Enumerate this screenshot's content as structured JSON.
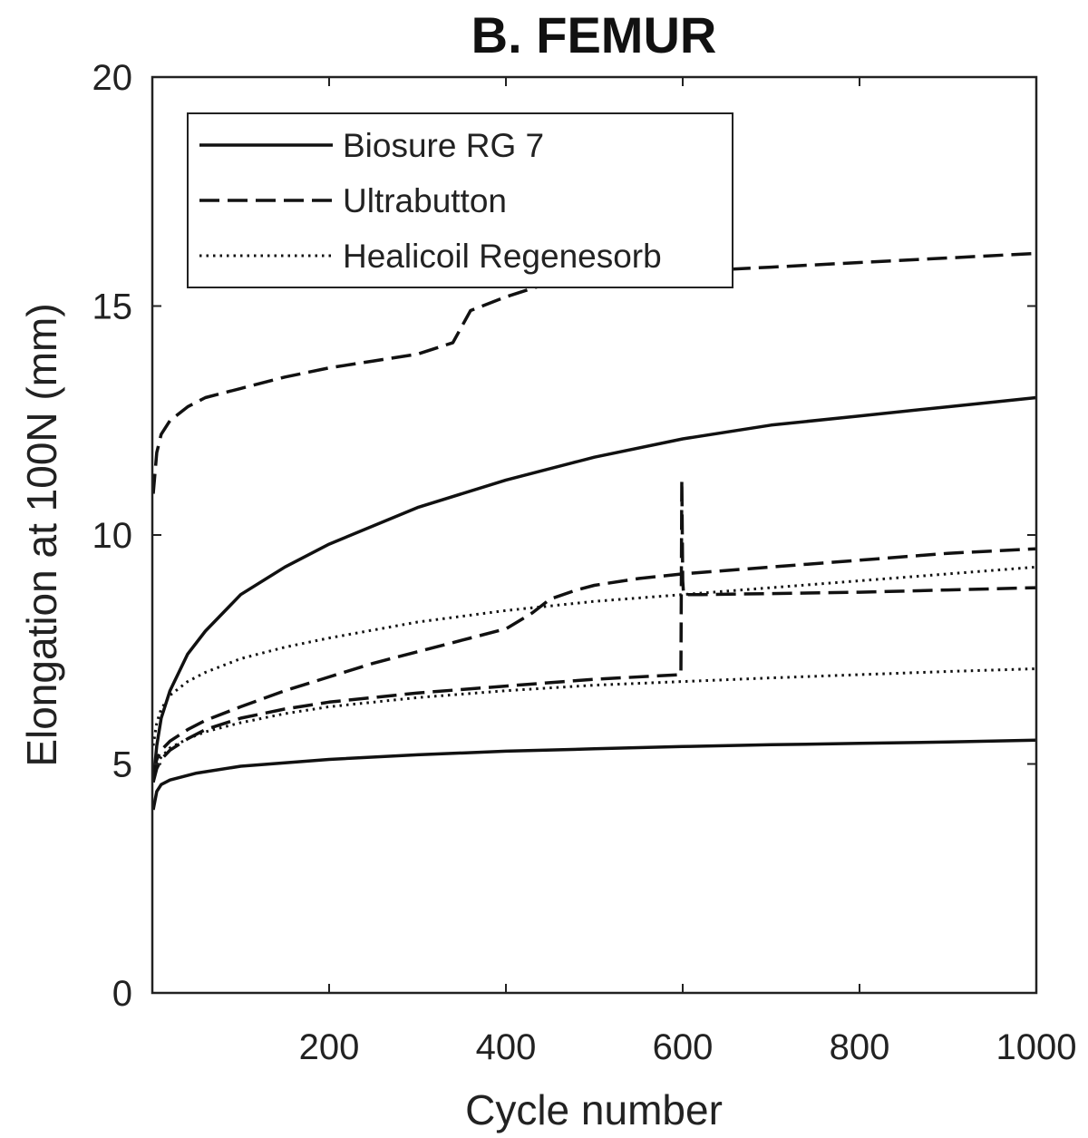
{
  "chart_data": {
    "type": "line",
    "title": "B. FEMUR",
    "xlabel": "Cycle number",
    "ylabel": "Elongation at 100N (mm)",
    "xlim": [
      0,
      1000
    ],
    "ylim": [
      0,
      20
    ],
    "x_ticks": [
      200,
      400,
      600,
      800,
      1000
    ],
    "y_ticks": [
      0,
      5,
      10,
      15,
      20
    ],
    "grid": false,
    "legend_position": "top-left",
    "legend": [
      {
        "label": "Biosure RG 7",
        "style": "solid"
      },
      {
        "label": "Ultrabutton",
        "style": "dashed"
      },
      {
        "label": "Healicoil Regenesorb",
        "style": "dotted"
      }
    ],
    "series": [
      {
        "legend_index": 0,
        "style": "solid",
        "x": [
          1,
          5,
          10,
          20,
          40,
          60,
          100,
          150,
          200,
          300,
          400,
          500,
          600,
          700,
          800,
          900,
          1000
        ],
        "y": [
          4.6,
          5.4,
          6.0,
          6.6,
          7.4,
          7.9,
          8.7,
          9.3,
          9.8,
          10.6,
          11.2,
          11.7,
          12.1,
          12.4,
          12.6,
          12.8,
          13.0
        ]
      },
      {
        "legend_index": 0,
        "style": "solid",
        "x": [
          1,
          5,
          10,
          20,
          50,
          100,
          200,
          300,
          400,
          500,
          600,
          700,
          800,
          900,
          1000
        ],
        "y": [
          4.0,
          4.4,
          4.55,
          4.65,
          4.8,
          4.95,
          5.1,
          5.2,
          5.28,
          5.33,
          5.38,
          5.42,
          5.45,
          5.48,
          5.52
        ]
      },
      {
        "legend_index": 1,
        "style": "dashed",
        "x": [
          1,
          5,
          10,
          20,
          40,
          60,
          100,
          150,
          200,
          250,
          300,
          340,
          360,
          400,
          440,
          480,
          500,
          600,
          700,
          800,
          900,
          1000
        ],
        "y": [
          10.9,
          11.8,
          12.2,
          12.5,
          12.8,
          13.0,
          13.2,
          13.45,
          13.65,
          13.8,
          13.95,
          14.2,
          14.9,
          15.2,
          15.45,
          15.55,
          15.6,
          15.75,
          15.85,
          15.95,
          16.05,
          16.15
        ]
      },
      {
        "legend_index": 1,
        "style": "dashed",
        "x": [
          1,
          5,
          10,
          20,
          40,
          60,
          100,
          150,
          200,
          250,
          300,
          350,
          400,
          430,
          450,
          480,
          500,
          550,
          600,
          700,
          800,
          900,
          1000
        ],
        "y": [
          4.8,
          5.1,
          5.3,
          5.5,
          5.75,
          5.95,
          6.25,
          6.6,
          6.9,
          7.2,
          7.45,
          7.7,
          7.95,
          8.3,
          8.6,
          8.8,
          8.9,
          9.05,
          9.15,
          9.3,
          9.45,
          9.6,
          9.7
        ]
      },
      {
        "legend_index": 1,
        "style": "dashed",
        "x": [
          1,
          5,
          10,
          20,
          40,
          60,
          100,
          150,
          200,
          300,
          400,
          500,
          598,
          599,
          600,
          601,
          620,
          700,
          800,
          900,
          1000
        ],
        "y": [
          4.6,
          4.9,
          5.1,
          5.3,
          5.55,
          5.75,
          6.0,
          6.2,
          6.35,
          6.55,
          6.7,
          6.85,
          6.95,
          11.2,
          9.0,
          8.7,
          8.7,
          8.72,
          8.75,
          8.8,
          8.85
        ]
      },
      {
        "legend_index": 2,
        "style": "dotted",
        "x": [
          1,
          5,
          10,
          20,
          40,
          60,
          100,
          150,
          200,
          300,
          400,
          500,
          600,
          700,
          800,
          900,
          1000
        ],
        "y": [
          5.4,
          5.9,
          6.2,
          6.5,
          6.8,
          7.0,
          7.3,
          7.55,
          7.75,
          8.1,
          8.35,
          8.55,
          8.7,
          8.85,
          9.0,
          9.15,
          9.3
        ]
      },
      {
        "legend_index": 2,
        "style": "dotted",
        "x": [
          1,
          5,
          10,
          20,
          40,
          60,
          100,
          150,
          200,
          300,
          400,
          500,
          600,
          700,
          800,
          900,
          1000
        ],
        "y": [
          4.7,
          5.0,
          5.15,
          5.35,
          5.55,
          5.7,
          5.9,
          6.1,
          6.25,
          6.45,
          6.6,
          6.72,
          6.8,
          6.88,
          6.95,
          7.02,
          7.08
        ]
      }
    ]
  }
}
